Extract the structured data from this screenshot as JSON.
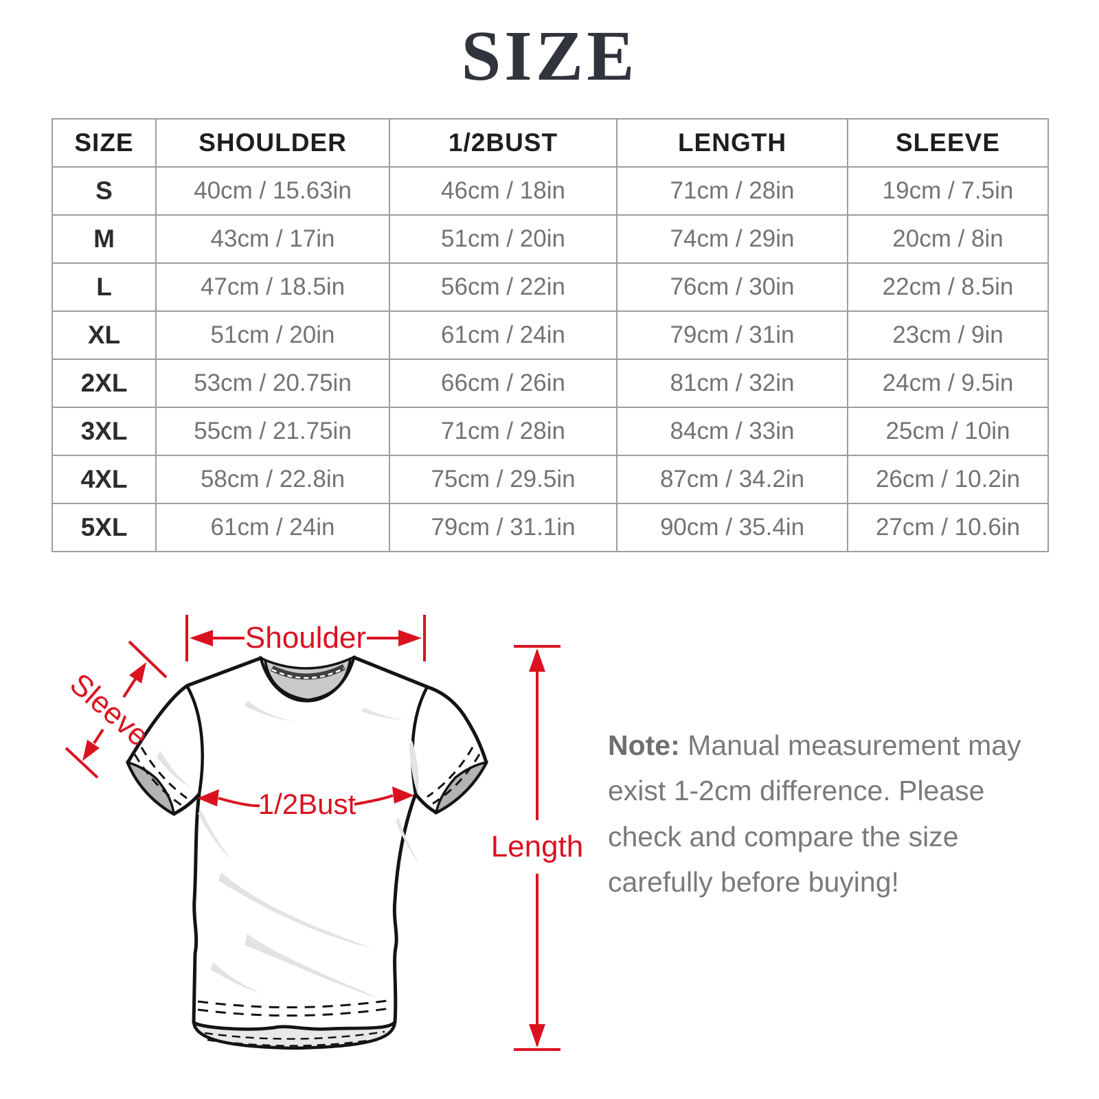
{
  "title": "SIZE",
  "table": {
    "columns": [
      "SIZE",
      "SHOULDER",
      "1/2BUST",
      "LENGTH",
      "SLEEVE"
    ],
    "rows": [
      [
        "S",
        "40cm / 15.63in",
        "46cm / 18in",
        "71cm / 28in",
        "19cm / 7.5in"
      ],
      [
        "M",
        "43cm / 17in",
        "51cm / 20in",
        "74cm / 29in",
        "20cm / 8in"
      ],
      [
        "L",
        "47cm / 18.5in",
        "56cm / 22in",
        "76cm / 30in",
        "22cm / 8.5in"
      ],
      [
        "XL",
        "51cm / 20in",
        "61cm / 24in",
        "79cm / 31in",
        "23cm / 9in"
      ],
      [
        "2XL",
        "53cm / 20.75in",
        "66cm / 26in",
        "81cm / 32in",
        "24cm / 9.5in"
      ],
      [
        "3XL",
        "55cm / 21.75in",
        "71cm / 28in",
        "84cm / 33in",
        "25cm / 10in"
      ],
      [
        "4XL",
        "58cm / 22.8in",
        "75cm / 29.5in",
        "87cm / 34.2in",
        "26cm / 10.2in"
      ],
      [
        "5XL",
        "61cm / 24in",
        "79cm / 31.1in",
        "90cm / 35.4in",
        "27cm / 10.6in"
      ]
    ]
  },
  "diagram": {
    "accent": "#da1220",
    "labels": {
      "shoulder": "Shoulder",
      "sleeve": "Sleeve",
      "bust": "1/2Bust",
      "length": "Length"
    }
  },
  "note": {
    "label": "Note:",
    "text": "Manual measurement may exist 1-2cm difference. Please check and compare the size carefully before buying!"
  }
}
